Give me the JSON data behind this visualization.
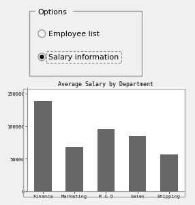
{
  "categories": [
    "Finance",
    "Marketing",
    "R & D",
    "Sales",
    "Shipping"
  ],
  "values": [
    138000,
    68000,
    95000,
    85000,
    57000
  ],
  "bar_color": "#666666",
  "title": "Average Salary by Department",
  "ylim": [
    0,
    160000
  ],
  "yticks": [
    0,
    50000,
    100000,
    150000
  ],
  "ytick_labels": [
    "0",
    "50000",
    "100000",
    "150000"
  ],
  "chart_bg": "#ffffff",
  "outer_bg": "#f0f0f0",
  "options_label": "Options",
  "radio1_label": "Employee list",
  "radio2_label": "Salary information",
  "radio1_selected": false,
  "radio2_selected": true,
  "title_fontsize": 6.0,
  "tick_fontsize": 5.0
}
